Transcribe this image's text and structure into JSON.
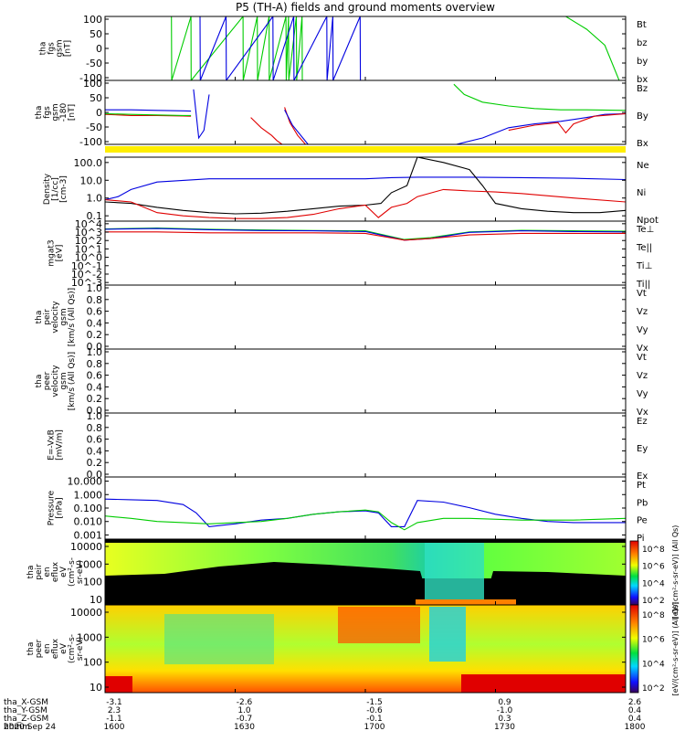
{
  "title": "P5 (TH-A) fields and ground moments overview",
  "colors": {
    "black": "#000000",
    "red": "#e00000",
    "green": "#00cc00",
    "blue": "#0000e0",
    "yellow": "#ffee00"
  },
  "chart_data": {
    "type": "line",
    "x_range": [
      "1600",
      "1800"
    ],
    "panels": [
      {
        "id": "fgs",
        "ylabel": [
          "tha",
          "fgs",
          "gsm",
          "[nT]"
        ],
        "yticks": [
          "100",
          "50",
          "0",
          "-50",
          "-100"
        ],
        "ylim": [
          -100,
          100
        ],
        "legend": [
          {
            "label": "Bt",
            "color": "#000000"
          },
          {
            "label": "bz",
            "color": "#e00000"
          },
          {
            "label": "by",
            "color": "#00cc00"
          },
          {
            "label": "bx",
            "color": "#0000e0"
          }
        ],
        "series": [
          {
            "color": "#00cc00",
            "x": [
              1625.5,
              1625.6,
              1633,
              1633.1,
              1653,
              1653.1,
              1658.5,
              1658.6,
              1663,
              1663.1,
              1669.5,
              1669.6,
              1670.5,
              1670.6,
              1673.5,
              1673.6,
              1675.7,
              1675.8
            ],
            "y": [
              100,
              -100,
              100,
              -100,
              100,
              -100,
              100,
              -100,
              100,
              -100,
              100,
              -100,
              100,
              -100,
              100,
              -100,
              100,
              -100
            ]
          },
          {
            "color": "#0000e0",
            "x": [
              1636.5,
              1636.6,
              1646.5,
              1646.6,
              1664.5,
              1664.6,
              1672.5,
              1672.6,
              1685.2,
              1685.3,
              1687.5,
              1687.6,
              1698,
              1698.1
            ],
            "y": [
              100,
              -100,
              100,
              -100,
              100,
              -100,
              100,
              -100,
              100,
              -100,
              100,
              -100,
              100,
              -100
            ]
          },
          {
            "color": "#00cc00",
            "x": [
              1777,
              1785,
              1792,
              1797.5
            ],
            "y": [
              100,
              60,
              10,
              -100
            ]
          }
        ]
      },
      {
        "id": "fgs_gse",
        "ylabel": [
          "tha",
          "fgs",
          "gsm",
          "-180",
          "[nT]"
        ],
        "yticks": [
          "100",
          "50",
          "0",
          "-50",
          "-100"
        ],
        "ylim": [
          -125,
          125
        ],
        "legend": [
          {
            "label": "Bz",
            "color": "#e00000"
          },
          {
            "label": "By",
            "color": "#00cc00"
          },
          {
            "label": "Bx",
            "color": "#0000e0"
          }
        ],
        "series": [
          {
            "color": "#0000e0",
            "x": [
              1600,
              1610,
              1620,
              1630,
              1633
            ],
            "y": [
              10,
              10,
              8,
              6,
              5
            ]
          },
          {
            "color": "#e00000",
            "x": [
              1600,
              1610,
              1620,
              1630,
              1633
            ],
            "y": [
              -8,
              -12,
              -12,
              -14,
              -15
            ]
          },
          {
            "color": "#00cc00",
            "x": [
              1600,
              1610,
              1620,
              1630,
              1633
            ],
            "y": [
              -5,
              -8,
              -10,
              -12,
              -12
            ]
          },
          {
            "color": "#0000e0",
            "x": [
              1634,
              1636,
              1638,
              1640
            ],
            "y": [
              90,
              -100,
              -70,
              70
            ]
          },
          {
            "color": "#e00000",
            "x": [
              1656,
              1660,
              1664,
              1666,
              1668
            ],
            "y": [
              -20,
              -60,
              -90,
              -110,
              -125
            ]
          },
          {
            "color": "#e00000",
            "x": [
              1669,
              1671,
              1674,
              1677
            ],
            "y": [
              20,
              -40,
              -90,
              -125
            ]
          },
          {
            "color": "#0000e0",
            "x": [
              1669,
              1672,
              1676,
              1678
            ],
            "y": [
              10,
              -50,
              -100,
              -125
            ]
          },
          {
            "color": "#00cc00",
            "x": [
              1734,
              1738,
              1745,
              1755,
              1765,
              1775,
              1785,
              1800
            ],
            "y": [
              110,
              70,
              40,
              25,
              15,
              10,
              10,
              8
            ]
          },
          {
            "color": "#0000e0",
            "x": [
              1735,
              1745,
              1755,
              1765,
              1775,
              1785,
              1792,
              1800
            ],
            "y": [
              -125,
              -100,
              -60,
              -45,
              -35,
              -20,
              -8,
              -5
            ]
          },
          {
            "color": "#e00000",
            "x": [
              1755,
              1765,
              1774,
              1777,
              1780,
              1788,
              1800
            ],
            "y": [
              -70,
              -50,
              -40,
              -80,
              -45,
              -15,
              -5
            ]
          }
        ]
      },
      {
        "id": "density",
        "ylabel": [
          "Density",
          "[1/cc]",
          "[cm-3]"
        ],
        "yticks": [
          "100.0",
          "10.0",
          "1.0",
          "0.1"
        ],
        "ylim_log10": [
          -1.3,
          2.3
        ],
        "legend": [
          {
            "label": "Ne",
            "color": "#e00000"
          },
          {
            "label": "Ni",
            "color": "#000000"
          },
          {
            "label": "Npot",
            "color": "#0000e0"
          }
        ],
        "series": [
          {
            "color": "#0000e0",
            "x": [
              1600,
              1605,
              1610,
              1620,
              1640,
              1660,
              1680,
              1700,
              1710,
              1720,
              1740,
              1760,
              1780,
              1800
            ],
            "y": [
              0.8,
              1.2,
              3,
              8,
              12,
              12,
              12,
              12,
              14,
              15,
              15,
              14,
              13,
              11
            ]
          },
          {
            "color": "#000000",
            "x": [
              1600,
              1610,
              1620,
              1630,
              1640,
              1650,
              1660,
              1670,
              1680,
              1690,
              1700,
              1706,
              1710,
              1716,
              1720,
              1730,
              1740,
              1745,
              1750,
              1760,
              1770,
              1780,
              1790,
              1800
            ],
            "y": [
              0.6,
              0.5,
              0.3,
              0.2,
              0.15,
              0.13,
              0.14,
              0.18,
              0.25,
              0.35,
              0.4,
              0.5,
              2,
              5,
              200,
              100,
              40,
              5,
              0.5,
              0.25,
              0.18,
              0.15,
              0.15,
              0.2
            ]
          },
          {
            "color": "#e00000",
            "x": [
              1600,
              1610,
              1620,
              1630,
              1640,
              1650,
              1660,
              1670,
              1680,
              1690,
              1700,
              1705,
              1710,
              1716,
              1720,
              1730,
              1740,
              1750,
              1760,
              1780,
              1800
            ],
            "y": [
              0.8,
              0.6,
              0.15,
              0.1,
              0.08,
              0.07,
              0.07,
              0.08,
              0.12,
              0.25,
              0.4,
              0.08,
              0.3,
              0.5,
              1.2,
              3,
              2.5,
              2.2,
              1.8,
              1,
              0.6
            ]
          }
        ]
      },
      {
        "id": "temperature",
        "ylabel": [
          "mgat3",
          "[eV]"
        ],
        "yticks": [
          "10^4",
          "10^3",
          "10^2",
          "10^1",
          "10^0",
          "10^-1",
          "10^-2",
          "10^-3"
        ],
        "ylim_log10": [
          -3.2,
          4.2
        ],
        "legend": [
          {
            "label": "Te⊥",
            "color": "#e00000"
          },
          {
            "label": "Te||",
            "color": "#000000"
          },
          {
            "label": "Ti⊥",
            "color": "#0000e0"
          },
          {
            "label": "Ti||",
            "color": "#00cc00"
          }
        ],
        "series": [
          {
            "color": "#00cc00",
            "x": [
              1600,
              1620,
              1640,
              1660,
              1680,
              1700,
              1715,
              1725,
              1740,
              1760,
              1780,
              1800
            ],
            "y": [
              2000,
              2500,
              1800,
              1500,
              1300,
              1200,
              120,
              200,
              900,
              1400,
              1200,
              1100
            ]
          },
          {
            "color": "#0000e0",
            "x": [
              1600,
              1620,
              1640,
              1660,
              1680,
              1700,
              1715,
              1725,
              1740,
              1760,
              1780,
              1800
            ],
            "y": [
              1800,
              2200,
              1600,
              1300,
              1200,
              1000,
              100,
              150,
              800,
              1200,
              1000,
              900
            ]
          },
          {
            "color": "#e00000",
            "x": [
              1600,
              1620,
              1640,
              1660,
              1680,
              1700,
              1715,
              1725,
              1740,
              1760,
              1780,
              1800
            ],
            "y": [
              900,
              900,
              700,
              700,
              700,
              600,
              100,
              150,
              400,
              600,
              600,
              600
            ]
          }
        ]
      },
      {
        "id": "peir_velocity",
        "ylabel": [
          "tha",
          "peir",
          "velocity",
          "gsm",
          "[km/s (All Qs)]"
        ],
        "yticks": [
          "1.0",
          "0.8",
          "0.6",
          "0.4",
          "0.2",
          "0.0"
        ],
        "ylim": [
          0,
          1
        ],
        "legend": [
          {
            "label": "Vt",
            "color": "#000000"
          },
          {
            "label": "Vz",
            "color": "#e00000"
          },
          {
            "label": "Vy",
            "color": "#00cc00"
          },
          {
            "label": "Vx",
            "color": "#0000e0"
          }
        ],
        "series": []
      },
      {
        "id": "peer_velocity",
        "ylabel": [
          "tha",
          "peer",
          "velocity",
          "gsm",
          "[km/s (All Qs)]"
        ],
        "yticks": [
          "1.0",
          "0.8",
          "0.6",
          "0.4",
          "0.2",
          "0.0"
        ],
        "ylim": [
          0,
          1
        ],
        "legend": [
          {
            "label": "Vt",
            "color": "#000000"
          },
          {
            "label": "Vz",
            "color": "#e00000"
          },
          {
            "label": "Vy",
            "color": "#00cc00"
          },
          {
            "label": "Vx",
            "color": "#0000e0"
          }
        ],
        "series": []
      },
      {
        "id": "efield",
        "ylabel": [
          "E=-VxB",
          "[mV/m]"
        ],
        "yticks": [
          "1.0",
          "0.8",
          "0.6",
          "0.4",
          "0.2",
          "0.0"
        ],
        "ylim": [
          0,
          1
        ],
        "legend": [
          {
            "label": "Ez",
            "color": "#e00000"
          },
          {
            "label": "Ey",
            "color": "#00cc00"
          },
          {
            "label": "Ex",
            "color": "#0000e0"
          }
        ],
        "series": []
      },
      {
        "id": "pressure",
        "ylabel": [
          "Pressure",
          "[nPa]"
        ],
        "yticks": [
          "10.000",
          "1.000",
          "0.100",
          "0.010",
          "0.001"
        ],
        "ylim_log10": [
          -3.2,
          1.3
        ],
        "legend": [
          {
            "label": "Pt",
            "color": "#000000"
          },
          {
            "label": "Pb",
            "color": "#e00000"
          },
          {
            "label": "Pe",
            "color": "#00cc00"
          },
          {
            "label": "Pi",
            "color": "#0000e0"
          }
        ],
        "series": [
          {
            "color": "#0000e0",
            "x": [
              1600,
              1610,
              1620,
              1630,
              1635,
              1640,
              1650,
              1660,
              1670,
              1680,
              1690,
              1700,
              1705,
              1710,
              1715,
              1720,
              1730,
              1740,
              1750,
              1760,
              1770,
              1780,
              1790,
              1800
            ],
            "y": [
              0.5,
              0.45,
              0.4,
              0.2,
              0.05,
              0.005,
              0.008,
              0.015,
              0.02,
              0.04,
              0.06,
              0.07,
              0.05,
              0.005,
              0.005,
              0.4,
              0.3,
              0.12,
              0.04,
              0.02,
              0.012,
              0.01,
              0.01,
              0.01
            ]
          },
          {
            "color": "#00cc00",
            "x": [
              1600,
              1610,
              1620,
              1630,
              1640,
              1650,
              1660,
              1670,
              1680,
              1690,
              1700,
              1705,
              1710,
              1715,
              1720,
              1730,
              1740,
              1760,
              1780,
              1800
            ],
            "y": [
              0.03,
              0.02,
              0.012,
              0.01,
              0.008,
              0.01,
              0.012,
              0.02,
              0.04,
              0.06,
              0.08,
              0.06,
              0.01,
              0.003,
              0.01,
              0.02,
              0.02,
              0.015,
              0.015,
              0.02
            ]
          }
        ]
      },
      {
        "id": "peir_eflux",
        "type": "heatmap",
        "ylabel": [
          "tha",
          "peir",
          "en",
          "eflux",
          "eV",
          "(cm²-s-",
          "sr-eV)"
        ],
        "yticks": [
          "10000",
          "1000",
          "100",
          "10"
        ],
        "colorbar_label": "[eV/(cm²-s-sr-eV)] (All Qs)",
        "colorbar_ticks": [
          "10^8",
          "10^6",
          "10^4",
          "10^2"
        ]
      },
      {
        "id": "peer_eflux",
        "type": "heatmap",
        "ylabel": [
          "tha",
          "peer",
          "en",
          "eflux",
          "eV",
          "(cm²-s-",
          "sr-eV)"
        ],
        "yticks": [
          "10000",
          "1000",
          "100",
          "10"
        ],
        "colorbar_label": "[eV/(cm²-s-sr-eV)] (All Qs)",
        "colorbar_ticks": [
          "10^8",
          "10^6",
          "10^4",
          "10^2"
        ]
      }
    ],
    "x_axis": {
      "rows": [
        {
          "label": "tha_X-GSM",
          "values": [
            "-3.1",
            "-2.6",
            "-1.5",
            "0.9",
            "2.6"
          ]
        },
        {
          "label": "tha_Y-GSM",
          "values": [
            "2.3",
            "1.0",
            "-0.6",
            "-1.0",
            "0.4"
          ]
        },
        {
          "label": "tha_Z-GSM",
          "values": [
            "-1.1",
            "-0.7",
            "-0.1",
            "0.3",
            "0.4"
          ]
        },
        {
          "label": "hhmm",
          "values": [
            "1600",
            "1630",
            "1700",
            "1730",
            "1800"
          ]
        }
      ],
      "date": "2020 Sep 24"
    }
  }
}
